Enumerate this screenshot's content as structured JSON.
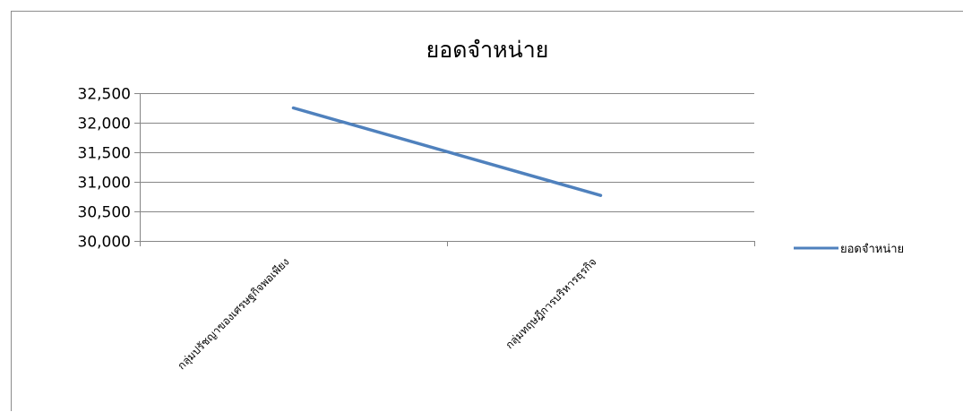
{
  "chart_data": {
    "type": "line",
    "title": "ยอดจำหน่าย",
    "xlabel": "",
    "ylabel": "",
    "categories": [
      "กลุ่มปรัชญาของเศรษฐกิจพอเพียง",
      "กลุ่มทฤษฎีการบริหารธุรกิจ"
    ],
    "series": [
      {
        "name": "ยอดจำหน่าย",
        "values": [
          32250,
          30770
        ],
        "color": "#4F81BD"
      }
    ],
    "ylim": [
      30000,
      32500
    ],
    "yticks": [
      30000,
      30500,
      31000,
      31500,
      32000,
      32500
    ],
    "ytick_labels": [
      "30,000",
      "30,500",
      "31,000",
      "31,500",
      "32,000",
      "32,500"
    ],
    "grid": true,
    "legend_position": "right",
    "colors": {
      "series": "#4F81BD",
      "grid": "#868686",
      "axis": "#868686",
      "frame": "#8c8c8c"
    }
  }
}
